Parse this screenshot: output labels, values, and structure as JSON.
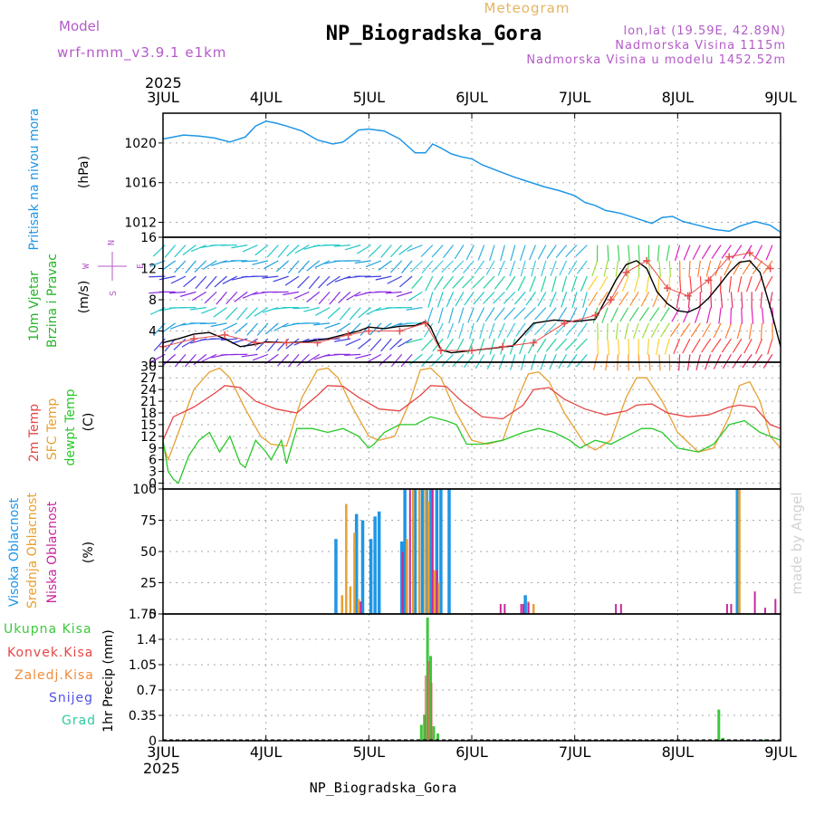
{
  "header": {
    "model_label": "Model",
    "model_name": "wrf-nmm_v3.9.1 e1km",
    "product": "Meteogram",
    "station": "NP_Biogradska_Gora",
    "lonlat": "lon,lat (19.59E, 42.89N)",
    "altitude": "Nadmorska Visina 1115m",
    "model_altitude": "Nadmorska Visina u modelu 1452.52m"
  },
  "footer": {
    "station": "NP_Biogradska_Gora",
    "watermark": "made by Angel"
  },
  "colors": {
    "pressure": "#1e96e6",
    "temp2m": "#e64646",
    "sfc": "#e6a032",
    "dewpt": "#28c828",
    "hi_cloud": "#1e96e6",
    "mid_cloud": "#e6a032",
    "low_cloud": "#c8289c",
    "wind_speed": "#000000",
    "gust": "#e65050",
    "precip_total": "#3cc83c",
    "precip_conv": "#e64646",
    "precip_frozen": "#f08c3c",
    "snow": "#5050e6",
    "grad": "#32c8a0",
    "frame": "#000000",
    "grid": "#aaaaaa",
    "ylabel": "#000000",
    "watermark": "#d2d2d2"
  },
  "time_axis": {
    "year": "2025",
    "day_labels": [
      "3JUL",
      "4JUL",
      "5JUL",
      "6JUL",
      "7JUL",
      "8JUL",
      "9JUL"
    ]
  },
  "chart_data": [
    {
      "type": "line",
      "y_title": "Pritisak na nivou mora",
      "unit": "(hPa)",
      "ylim": [
        1010.5,
        1023
      ],
      "y_ticks": [
        "1012",
        "1016",
        "1020"
      ],
      "grid": true,
      "series": [
        {
          "name": "Pritisak na nivou mora",
          "x": [
            0,
            0.2,
            0.35,
            0.5,
            0.65,
            0.8,
            0.9,
            1.0,
            1.1,
            1.2,
            1.35,
            1.5,
            1.65,
            1.75,
            1.9,
            2.0,
            2.15,
            2.3,
            2.45,
            2.55,
            2.62,
            2.7,
            2.8,
            2.9,
            3.0,
            3.1,
            3.25,
            3.4,
            3.55,
            3.7,
            3.85,
            4.0,
            4.1,
            4.2,
            4.3,
            4.45,
            4.6,
            4.75,
            4.85,
            4.95,
            5.05,
            5.2,
            5.35,
            5.5,
            5.6,
            5.75,
            5.9,
            6.0
          ],
          "y": [
            1020.4,
            1020.8,
            1020.7,
            1020.5,
            1020.1,
            1020.6,
            1021.7,
            1022.2,
            1022.0,
            1021.7,
            1021.2,
            1020.3,
            1019.9,
            1020.1,
            1021.3,
            1021.4,
            1021.2,
            1020.4,
            1019.0,
            1019.0,
            1019.9,
            1019.5,
            1018.9,
            1018.6,
            1018.4,
            1017.8,
            1017.2,
            1016.6,
            1016.1,
            1015.6,
            1015.2,
            1014.7,
            1014.0,
            1013.7,
            1013.2,
            1012.9,
            1012.4,
            1011.9,
            1012.5,
            1012.6,
            1012.1,
            1011.7,
            1011.3,
            1011.1,
            1011.6,
            1012.1,
            1011.7,
            1011.0
          ]
        }
      ]
    },
    {
      "type": "line",
      "y_title": "10m Vjetar Brzina i Pravac",
      "unit": "(m/s)",
      "ylim": [
        0,
        16
      ],
      "y_ticks": [
        "0",
        "4",
        "8",
        "12",
        "16"
      ],
      "grid": true,
      "compass": [
        "N",
        "E",
        "S",
        "W"
      ],
      "series": [
        {
          "name": "Brzina",
          "x": [
            0,
            0.15,
            0.3,
            0.45,
            0.6,
            0.75,
            0.9,
            1.0,
            1.2,
            1.4,
            1.6,
            1.75,
            1.9,
            2.0,
            2.15,
            2.3,
            2.45,
            2.55,
            2.6,
            2.7,
            2.8,
            3.0,
            3.2,
            3.4,
            3.6,
            3.8,
            4.0,
            4.2,
            4.3,
            4.4,
            4.5,
            4.6,
            4.7,
            4.8,
            4.9,
            5.0,
            5.1,
            5.2,
            5.3,
            5.4,
            5.5,
            5.6,
            5.7,
            5.8,
            5.9,
            6.0
          ],
          "y": [
            2.5,
            3.0,
            3.6,
            3.8,
            3.0,
            2.0,
            2.3,
            2.6,
            2.5,
            2.6,
            3.0,
            3.5,
            4.0,
            4.5,
            4.3,
            4.6,
            4.7,
            5.2,
            4.5,
            1.6,
            1.2,
            1.5,
            1.8,
            2.1,
            5.0,
            5.4,
            5.2,
            5.5,
            8.0,
            10.5,
            12.5,
            13.0,
            12.0,
            9.0,
            7.5,
            6.6,
            6.4,
            7.0,
            8.2,
            9.8,
            11.5,
            12.8,
            13.0,
            11.5,
            7.0,
            2.0
          ]
        },
        {
          "name": "Udari",
          "x": [
            0,
            0.3,
            0.6,
            0.9,
            1.2,
            1.5,
            1.8,
            2.0,
            2.3,
            2.55,
            2.7,
            3.0,
            3.3,
            3.6,
            3.9,
            4.2,
            4.35,
            4.5,
            4.7,
            4.9,
            5.1,
            5.3,
            5.5,
            5.7,
            5.9
          ],
          "y": [
            2.0,
            3.0,
            3.5,
            2.5,
            2.5,
            2.5,
            3.5,
            4.0,
            4.0,
            5.0,
            1.5,
            1.5,
            2.0,
            2.5,
            5.0,
            6.0,
            8.0,
            11.5,
            13.0,
            9.5,
            8.5,
            10.5,
            13.5,
            14.0,
            12.0
          ]
        }
      ]
    },
    {
      "type": "line",
      "y_title": "2m Temp / SFC Temp / dewpt Temp",
      "unit": "(C)",
      "ylim": [
        -1.5,
        31
      ],
      "y_ticks": [
        "0",
        "3",
        "6",
        "9",
        "12",
        "15",
        "18",
        "21",
        "24",
        "27",
        "30"
      ],
      "grid": true,
      "series": [
        {
          "name": "2m Temp",
          "x": [
            0,
            0.1,
            0.3,
            0.5,
            0.6,
            0.75,
            0.9,
            1.1,
            1.3,
            1.5,
            1.6,
            1.75,
            1.9,
            2.1,
            2.3,
            2.5,
            2.6,
            2.75,
            2.9,
            3.1,
            3.3,
            3.5,
            3.6,
            3.75,
            3.9,
            4.1,
            4.3,
            4.5,
            4.6,
            4.75,
            4.9,
            5.1,
            5.3,
            5.5,
            5.6,
            5.75,
            5.9,
            6.0
          ],
          "y": [
            11,
            17,
            19.5,
            23,
            25,
            24.5,
            21,
            19,
            18,
            22.5,
            25,
            24.8,
            22,
            19,
            18.5,
            22.5,
            25,
            24.8,
            21,
            17,
            16.5,
            20,
            24,
            24.5,
            21.5,
            19,
            17.5,
            18.5,
            20,
            20.3,
            18,
            17,
            17.5,
            19.5,
            20,
            19.5,
            15,
            14
          ]
        },
        {
          "name": "SFC Temp",
          "x": [
            0,
            0.05,
            0.15,
            0.3,
            0.45,
            0.55,
            0.65,
            0.8,
            0.95,
            1.05,
            1.2,
            1.35,
            1.5,
            1.6,
            1.7,
            1.85,
            2.0,
            2.1,
            2.25,
            2.4,
            2.5,
            2.6,
            2.7,
            2.85,
            3.0,
            3.15,
            3.3,
            3.45,
            3.55,
            3.65,
            3.75,
            3.9,
            4.1,
            4.2,
            4.35,
            4.5,
            4.6,
            4.7,
            4.85,
            5.0,
            5.2,
            5.35,
            5.5,
            5.6,
            5.7,
            5.8,
            5.9,
            6.0
          ],
          "y": [
            10,
            6,
            13,
            24,
            28.5,
            29.5,
            27,
            19,
            12,
            10,
            9.5,
            22,
            29,
            29.5,
            27,
            19,
            12,
            11,
            12,
            21,
            29,
            29.5,
            27,
            18,
            11,
            10,
            11,
            22,
            28,
            28.5,
            26,
            18,
            10,
            8.5,
            11,
            22,
            27,
            27,
            21,
            13,
            8,
            9,
            17,
            25,
            26,
            21,
            12,
            9
          ]
        },
        {
          "name": "dewpt Temp",
          "x": [
            0,
            0.05,
            0.1,
            0.15,
            0.25,
            0.35,
            0.45,
            0.55,
            0.65,
            0.75,
            0.8,
            0.9,
            1.0,
            1.05,
            1.15,
            1.2,
            1.3,
            1.45,
            1.6,
            1.75,
            1.9,
            2.0,
            2.05,
            2.15,
            2.3,
            2.45,
            2.6,
            2.75,
            2.85,
            2.95,
            3.1,
            3.3,
            3.5,
            3.65,
            3.8,
            3.95,
            4.05,
            4.2,
            4.35,
            4.5,
            4.65,
            4.75,
            4.85,
            5.0,
            5.2,
            5.35,
            5.5,
            5.65,
            5.8,
            5.9,
            6.0
          ],
          "y": [
            11,
            3,
            1,
            0,
            7,
            11,
            13,
            8,
            12,
            5,
            4,
            11,
            8,
            6,
            11,
            5,
            14,
            14,
            13,
            14,
            12,
            9,
            10,
            13,
            15,
            15,
            17,
            16,
            15,
            10,
            10,
            11,
            13,
            14,
            13,
            11,
            9,
            11,
            10,
            12,
            14,
            14,
            13,
            9,
            8,
            10,
            15,
            16,
            13,
            12,
            11
          ]
        }
      ]
    },
    {
      "type": "bar",
      "y_title": "Visoka Oblacnost / Srednja Oblacnost / Niska Oblacnost",
      "unit": "(%)",
      "ylim": [
        0,
        100
      ],
      "y_ticks": [
        "0",
        "25",
        "50",
        "75",
        "100"
      ],
      "grid": true,
      "series": [
        {
          "name": "Visoka Oblacnost",
          "x": [
            1.68,
            1.88,
            1.94,
            2.02,
            2.06,
            2.1,
            2.32,
            2.35,
            2.45,
            2.52,
            2.56,
            2.6,
            2.66,
            2.7,
            2.78,
            3.52,
            5.58
          ],
          "values": [
            60,
            80,
            75,
            60,
            78,
            82,
            58,
            100,
            100,
            100,
            100,
            100,
            100,
            100,
            100,
            15,
            100
          ]
        },
        {
          "name": "Srednja Oblacnost",
          "x": [
            1.74,
            1.78,
            1.82,
            1.86,
            1.9,
            2.37,
            2.43,
            2.49,
            2.55,
            2.58,
            2.64,
            2.68,
            3.55,
            3.6,
            5.6
          ],
          "values": [
            15,
            88,
            22,
            65,
            12,
            60,
            100,
            100,
            100,
            90,
            35,
            25,
            10,
            8,
            100
          ]
        },
        {
          "name": "Niska Oblacnost",
          "x": [
            1.92,
            2.33,
            2.4,
            2.62,
            2.66,
            3.28,
            3.32,
            3.48,
            3.5,
            3.55,
            4.4,
            4.45,
            5.48,
            5.52,
            5.75,
            5.85,
            5.95
          ],
          "values": [
            10,
            50,
            100,
            100,
            35,
            8,
            8,
            8,
            8,
            9,
            8,
            8,
            8,
            8,
            18,
            5,
            12
          ]
        }
      ]
    },
    {
      "type": "bar",
      "y_title": "1hr Precip",
      "unit": "(mm)",
      "ylim": [
        0,
        1.75
      ],
      "y_ticks": [
        "0",
        "0.35",
        "0.7",
        "1.05",
        "1.4",
        "1.75"
      ],
      "grid": true,
      "legend": [
        "Ukupna Kisa",
        "Konvek.Kisa",
        "Zaledj.Kisa",
        "Snijeg",
        "Grad"
      ],
      "series": [
        {
          "name": "Ukupna Kisa",
          "x": [
            2.51,
            2.54,
            2.57,
            2.6,
            2.63,
            2.67,
            5.4,
            5.44,
            5.85
          ],
          "values": [
            0.22,
            0.36,
            1.7,
            1.17,
            0.2,
            0.1,
            0.43,
            0.04,
            0.02
          ]
        },
        {
          "name": "Konvek.Kisa",
          "x": [
            2.55,
            2.58,
            2.61
          ],
          "values": [
            0.9,
            1.1,
            0.8
          ]
        }
      ]
    }
  ]
}
